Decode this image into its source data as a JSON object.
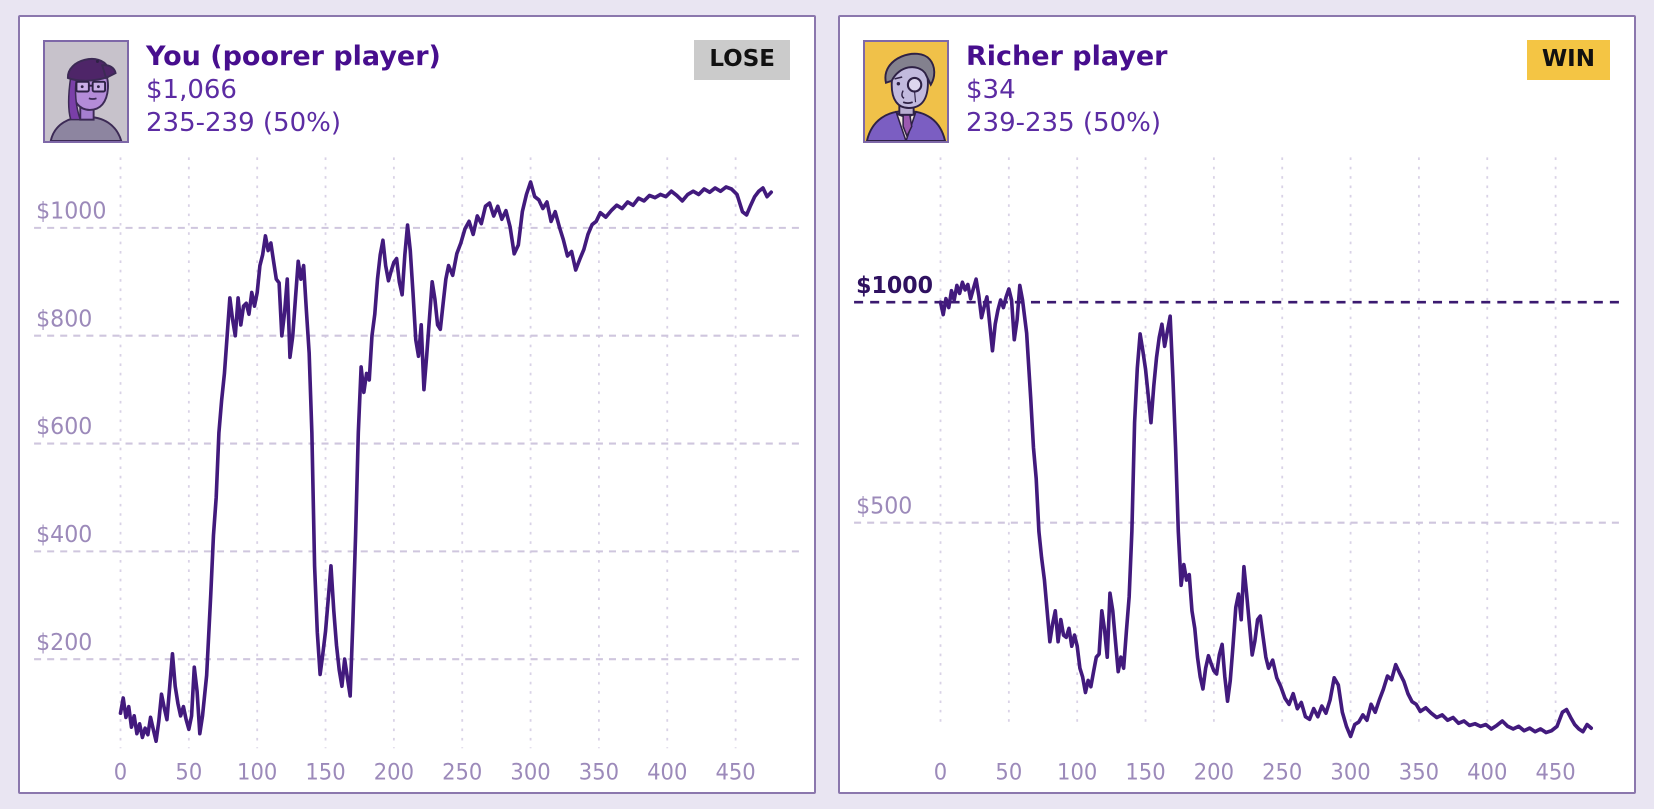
{
  "page": {
    "background": "#e9e5f2"
  },
  "colors": {
    "line": "#421a7d",
    "title_text": "#470e8e",
    "sub_text": "#5c2ca3",
    "axis_label": "#9c8aba",
    "grid_light": "#cfc6de",
    "grid_vertical": "#d9d2e6",
    "ref_dark_line": "#3b1a70",
    "ref_dark_label": "#2f1160",
    "panel_border": "#8b77ad",
    "panel_bg": "#ffffff",
    "win_badge_bg": "#f4c544",
    "lose_badge_bg": "#cbcbcb",
    "badge_text": "#111111"
  },
  "panels": [
    {
      "name": "You (poorer player)",
      "money": "$1,066",
      "record": "235-239 (50%)",
      "badge": {
        "label": "LOSE",
        "bg": "#cbcbcb"
      },
      "avatar": "poorer-player-avatar"
    },
    {
      "name": "Richer player",
      "money": "$34",
      "record": "239-235 (50%)",
      "badge": {
        "label": "WIN",
        "bg": "#f4c544"
      },
      "avatar": "richer-player-avatar"
    }
  ],
  "chart_data": [
    {
      "type": "line",
      "series_name": "Poorer player bankroll ($)",
      "xlabel": "game number",
      "ylabel": "bankroll",
      "xlim": [
        0,
        482
      ],
      "ylim": [
        0,
        1150
      ],
      "plot_bottom": 596,
      "grid": "dashed",
      "legend": "none",
      "line_color": "#421a7d",
      "x_ticks": [
        0,
        50,
        100,
        150,
        200,
        250,
        300,
        350,
        400,
        450
      ],
      "y_gridlines": [
        {
          "value": 200,
          "label": "$200",
          "emphasis": false
        },
        {
          "value": 400,
          "label": "$400",
          "emphasis": false
        },
        {
          "value": 600,
          "label": "$600",
          "emphasis": false
        },
        {
          "value": 800,
          "label": "$800",
          "emphasis": false
        },
        {
          "value": 1000,
          "label": "$1000",
          "emphasis": false
        }
      ],
      "x": [
        0,
        2,
        4,
        6,
        8,
        10,
        12,
        14,
        16,
        18,
        20,
        22,
        24,
        26,
        28,
        30,
        32,
        34,
        36,
        38,
        40,
        42,
        44,
        46,
        48,
        50,
        52,
        54,
        56,
        58,
        60,
        63,
        66,
        68,
        70,
        72,
        74,
        76,
        78,
        80,
        82,
        84,
        86,
        88,
        90,
        92,
        94,
        96,
        98,
        100,
        102,
        104,
        106,
        108,
        110,
        112,
        114,
        116,
        118,
        120,
        122,
        124,
        126,
        128,
        130,
        132,
        134,
        136,
        138,
        140,
        142,
        144,
        146,
        148,
        150,
        152,
        154,
        156,
        158,
        160,
        162,
        164,
        166,
        168,
        170,
        172,
        174,
        176,
        178,
        180,
        182,
        184,
        186,
        188,
        190,
        192,
        194,
        196,
        198,
        200,
        202,
        204,
        206,
        208,
        210,
        212,
        214,
        216,
        218,
        220,
        222,
        224,
        226,
        228,
        230,
        232,
        234,
        236,
        238,
        240,
        243,
        246,
        249,
        252,
        255,
        258,
        261,
        264,
        267,
        270,
        273,
        276,
        279,
        282,
        285,
        288,
        291,
        294,
        297,
        300,
        303,
        306,
        309,
        312,
        315,
        318,
        321,
        324,
        327,
        330,
        333,
        336,
        339,
        342,
        345,
        348,
        351,
        355,
        359,
        363,
        367,
        371,
        375,
        379,
        383,
        387,
        391,
        395,
        399,
        403,
        407,
        411,
        415,
        419,
        423,
        427,
        431,
        435,
        439,
        443,
        447,
        451,
        455,
        458,
        461,
        464,
        467,
        470,
        473,
        476
      ],
      "values": [
        100,
        128,
        92,
        112,
        74,
        95,
        62,
        80,
        55,
        72,
        60,
        92,
        70,
        48,
        85,
        135,
        110,
        88,
        150,
        210,
        150,
        118,
        95,
        112,
        88,
        70,
        95,
        185,
        140,
        62,
        95,
        170,
        320,
        430,
        500,
        620,
        680,
        730,
        800,
        870,
        830,
        800,
        870,
        820,
        855,
        860,
        840,
        880,
        855,
        880,
        930,
        950,
        985,
        958,
        972,
        938,
        905,
        898,
        800,
        842,
        905,
        760,
        800,
        870,
        938,
        905,
        930,
        845,
        768,
        620,
        373,
        250,
        172,
        210,
        252,
        312,
        373,
        290,
        226,
        180,
        150,
        200,
        165,
        132,
        270,
        430,
        620,
        742,
        695,
        730,
        718,
        800,
        840,
        905,
        950,
        977,
        930,
        902,
        920,
        936,
        943,
        900,
        876,
        950,
        1005,
        958,
        880,
        792,
        762,
        820,
        700,
        762,
        832,
        900,
        868,
        820,
        812,
        860,
        905,
        930,
        912,
        952,
        972,
        998,
        1012,
        988,
        1022,
        1008,
        1040,
        1046,
        1022,
        1040,
        1016,
        1032,
        1002,
        952,
        968,
        1030,
        1062,
        1085,
        1058,
        1052,
        1036,
        1048,
        1012,
        1030,
        1002,
        978,
        948,
        956,
        922,
        942,
        960,
        988,
        1006,
        1012,
        1028,
        1020,
        1032,
        1042,
        1036,
        1048,
        1042,
        1055,
        1050,
        1060,
        1056,
        1062,
        1058,
        1068,
        1060,
        1050,
        1062,
        1068,
        1062,
        1072,
        1066,
        1074,
        1068,
        1076,
        1072,
        1062,
        1030,
        1024,
        1042,
        1058,
        1068,
        1074,
        1058,
        1066
      ]
    },
    {
      "type": "line",
      "series_name": "Richer player bankroll ($)",
      "xlabel": "game number",
      "ylabel": "bankroll",
      "xlim": [
        0,
        482
      ],
      "ylim": [
        0,
        1352
      ],
      "plot_bottom": 573,
      "grid": "dashed",
      "legend": "none",
      "line_color": "#421a7d",
      "x_ticks": [
        0,
        50,
        100,
        150,
        200,
        250,
        300,
        350,
        400,
        450
      ],
      "y_gridlines": [
        {
          "value": 500,
          "label": "$500",
          "emphasis": false
        },
        {
          "value": 1000,
          "label": "$1000",
          "emphasis": true
        }
      ],
      "x": [
        0,
        2,
        4,
        6,
        8,
        10,
        12,
        14,
        16,
        18,
        20,
        22,
        24,
        26,
        28,
        30,
        32,
        34,
        36,
        38,
        40,
        42,
        44,
        46,
        48,
        50,
        52,
        54,
        56,
        58,
        60,
        63,
        66,
        68,
        70,
        72,
        74,
        76,
        78,
        80,
        82,
        84,
        86,
        88,
        90,
        92,
        94,
        96,
        98,
        100,
        102,
        104,
        106,
        108,
        110,
        112,
        114,
        116,
        118,
        120,
        122,
        124,
        126,
        128,
        130,
        132,
        134,
        136,
        138,
        140,
        142,
        144,
        146,
        148,
        150,
        152,
        154,
        156,
        158,
        160,
        162,
        164,
        166,
        168,
        170,
        172,
        174,
        176,
        178,
        180,
        182,
        184,
        186,
        188,
        190,
        192,
        194,
        196,
        198,
        200,
        202,
        204,
        206,
        208,
        210,
        212,
        214,
        216,
        218,
        220,
        222,
        224,
        226,
        228,
        230,
        232,
        234,
        236,
        238,
        240,
        243,
        246,
        249,
        252,
        255,
        258,
        261,
        264,
        267,
        270,
        273,
        276,
        279,
        282,
        285,
        288,
        291,
        294,
        297,
        300,
        303,
        306,
        309,
        312,
        315,
        318,
        321,
        324,
        327,
        330,
        333,
        336,
        339,
        342,
        345,
        348,
        351,
        355,
        359,
        363,
        367,
        371,
        375,
        379,
        383,
        387,
        391,
        395,
        399,
        403,
        407,
        411,
        415,
        419,
        423,
        427,
        431,
        435,
        439,
        443,
        447,
        451,
        455,
        458,
        461,
        464,
        467,
        470,
        473,
        476
      ],
      "values": [
        1000,
        972,
        1008,
        988,
        1026,
        1005,
        1038,
        1020,
        1045,
        1028,
        1040,
        1008,
        1030,
        1052,
        1015,
        965,
        990,
        1012,
        950,
        890,
        950,
        982,
        1005,
        988,
        1012,
        1030,
        1005,
        915,
        960,
        1038,
        1005,
        930,
        780,
        670,
        600,
        480,
        420,
        370,
        300,
        230,
        270,
        300,
        230,
        280,
        245,
        240,
        260,
        220,
        245,
        220,
        170,
        150,
        115,
        142,
        128,
        162,
        195,
        202,
        300,
        258,
        195,
        340,
        300,
        230,
        162,
        195,
        170,
        255,
        332,
        480,
        727,
        850,
        928,
        890,
        848,
        788,
        727,
        810,
        874,
        920,
        950,
        900,
        935,
        968,
        830,
        670,
        480,
        358,
        405,
        370,
        382,
        300,
        260,
        195,
        150,
        123,
        170,
        198,
        180,
        164,
        157,
        200,
        224,
        150,
        95,
        142,
        220,
        308,
        338,
        280,
        400,
        338,
        268,
        200,
        232,
        280,
        288,
        240,
        195,
        170,
        188,
        148,
        128,
        102,
        88,
        112,
        78,
        92,
        60,
        54,
        78,
        60,
        84,
        68,
        98,
        148,
        132,
        70,
        38,
        15,
        42,
        48,
        64,
        52,
        88,
        70,
        98,
        122,
        152,
        144,
        178,
        158,
        140,
        112,
        94,
        88,
        72,
        80,
        68,
        58,
        64,
        52,
        58,
        45,
        50,
        40,
        44,
        38,
        42,
        32,
        40,
        50,
        38,
        32,
        38,
        28,
        34,
        26,
        32,
        24,
        28,
        38,
        70,
        76,
        58,
        42,
        32,
        26,
        42,
        34
      ]
    }
  ]
}
